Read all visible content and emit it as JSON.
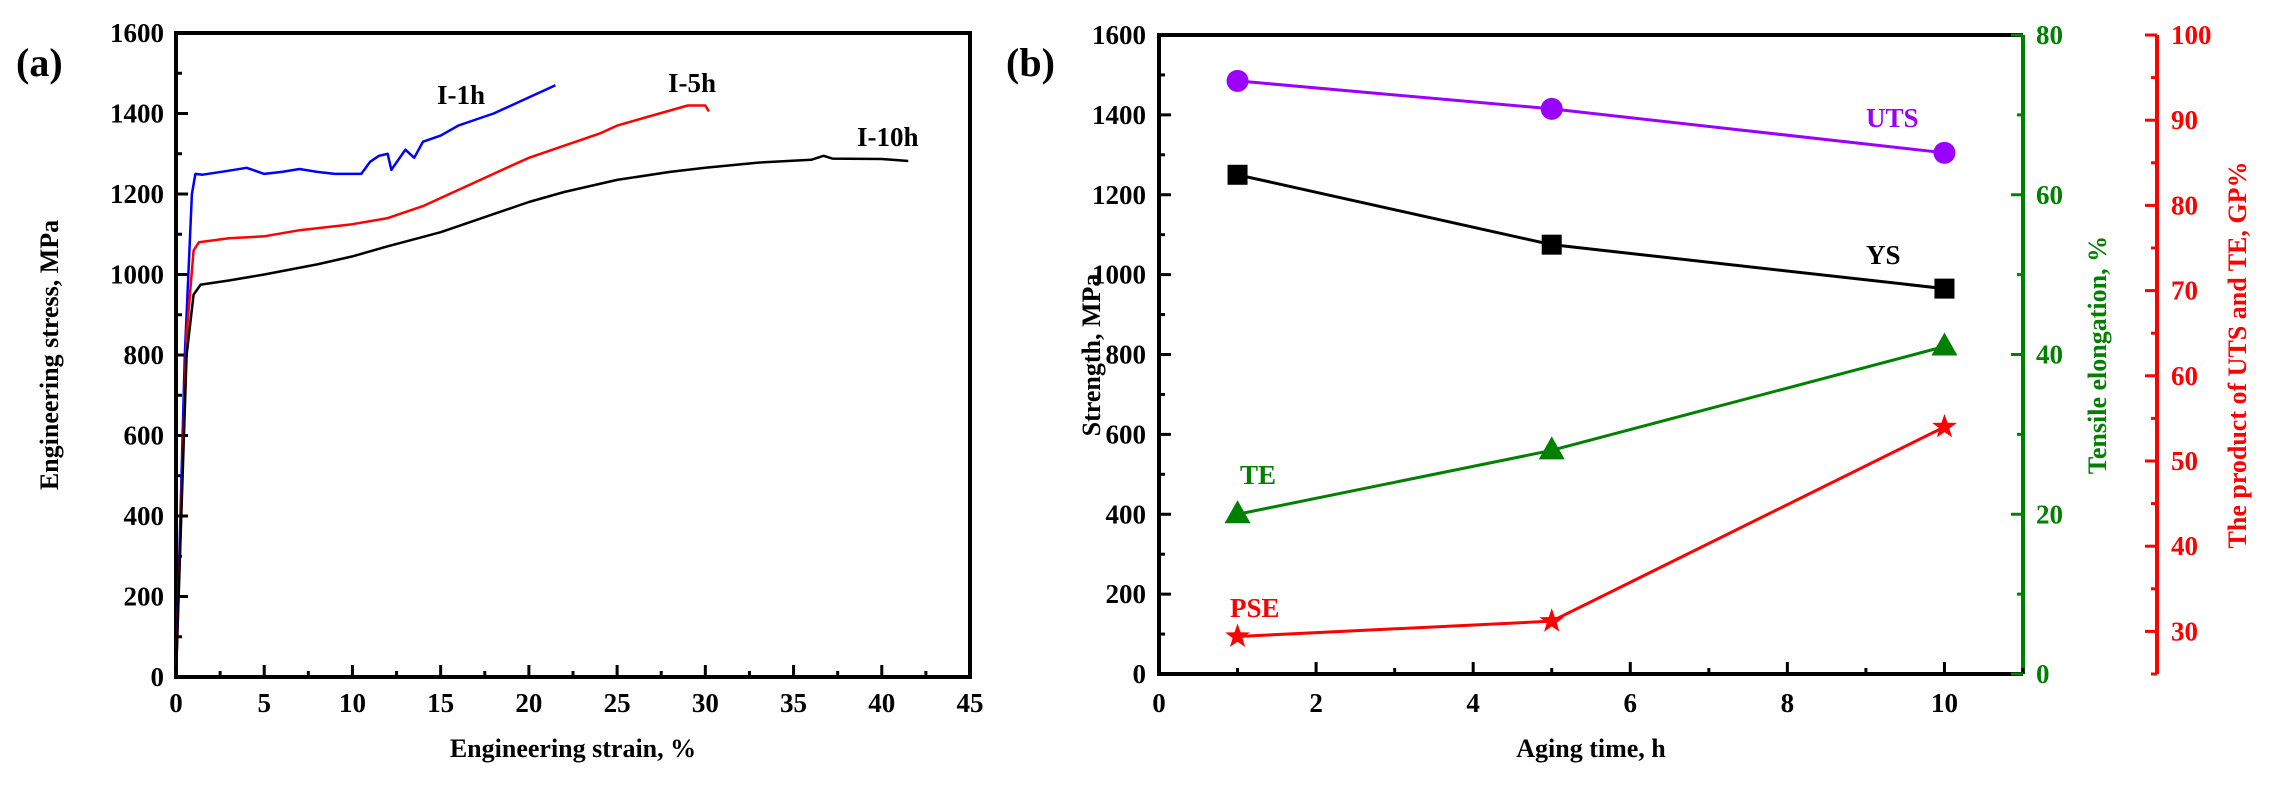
{
  "chart_data": [
    {
      "type": "line",
      "panel_label": "(a)",
      "xlabel": "Engineering strain, %",
      "ylabel": "Engineering stress, MPa",
      "xlim": [
        0,
        45
      ],
      "ylim": [
        0,
        1600
      ],
      "xticks": [
        0,
        5,
        10,
        15,
        20,
        25,
        30,
        35,
        40,
        45
      ],
      "yticks": [
        0,
        200,
        400,
        600,
        800,
        1000,
        1200,
        1400,
        1600
      ],
      "grid": false,
      "series": [
        {
          "name": "I-1h",
          "color": "#0000ff",
          "x": [
            0,
            0.5,
            0.9,
            1.1,
            1.5,
            3,
            4,
            5,
            6,
            7,
            8,
            9,
            10.5,
            11,
            11.5,
            12,
            12.2,
            13,
            13.5,
            14,
            15,
            16,
            17,
            18,
            19,
            20,
            21,
            21.5
          ],
          "y": [
            0,
            800,
            1200,
            1250,
            1248,
            1258,
            1265,
            1250,
            1255,
            1262,
            1255,
            1250,
            1250,
            1280,
            1295,
            1300,
            1260,
            1310,
            1290,
            1330,
            1345,
            1370,
            1385,
            1400,
            1420,
            1440,
            1460,
            1470
          ]
        },
        {
          "name": "I-5h",
          "color": "#ff0000",
          "x": [
            0,
            0.6,
            1.0,
            1.3,
            3,
            5,
            7,
            10,
            12,
            14,
            15,
            17,
            19,
            20,
            22,
            24,
            25,
            27,
            29,
            30,
            30.2
          ],
          "y": [
            0,
            850,
            1060,
            1080,
            1090,
            1095,
            1110,
            1125,
            1140,
            1170,
            1190,
            1230,
            1270,
            1290,
            1320,
            1350,
            1370,
            1395,
            1420,
            1420,
            1405
          ]
        },
        {
          "name": "I-10h",
          "color": "#000000",
          "x": [
            0,
            0.6,
            1.0,
            1.4,
            3,
            5,
            8,
            10,
            12,
            15,
            18,
            20,
            22,
            25,
            28,
            30,
            33,
            36,
            36.7,
            37.2,
            40,
            41.5
          ],
          "y": [
            0,
            800,
            950,
            975,
            985,
            1000,
            1025,
            1045,
            1070,
            1105,
            1150,
            1180,
            1205,
            1235,
            1255,
            1265,
            1278,
            1285,
            1295,
            1288,
            1287,
            1282
          ]
        }
      ],
      "annotations": [
        "I-1h",
        "I-5h",
        "I-10h"
      ]
    },
    {
      "type": "line",
      "panel_label": "(b)",
      "xlabel": "Aging time, h",
      "ylabel": "Strength, MPa",
      "ylabel_right1": "Tensile elongation, %",
      "ylabel_right2": "The product of UTS and TE, GP%",
      "xlim": [
        0,
        11
      ],
      "ylim": [
        0,
        1600
      ],
      "ylim_right1": [
        0,
        80
      ],
      "ylim_right2": [
        25,
        100
      ],
      "xticks": [
        0,
        2,
        4,
        6,
        8,
        10
      ],
      "yticks": [
        0,
        200,
        400,
        600,
        800,
        1000,
        1200,
        1400,
        1600
      ],
      "yticks_right1": [
        0,
        20,
        40,
        60,
        80
      ],
      "yticks_right2": [
        30,
        40,
        50,
        60,
        70,
        80,
        90,
        100
      ],
      "grid": false,
      "x": [
        1,
        5,
        10
      ],
      "series": [
        {
          "name": "UTS",
          "axis": "left",
          "color": "#9b00ff",
          "marker": "circle",
          "values": [
            1485,
            1415,
            1305
          ]
        },
        {
          "name": "YS",
          "axis": "left",
          "color": "#000000",
          "marker": "square",
          "values": [
            1250,
            1075,
            965
          ]
        },
        {
          "name": "TE",
          "axis": "right1",
          "color": "#008000",
          "marker": "triangle",
          "values": [
            20,
            28,
            41
          ]
        },
        {
          "name": "PSE",
          "axis": "right2",
          "color": "#ff0000",
          "marker": "star",
          "values": [
            29.4,
            31.2,
            54
          ]
        }
      ],
      "axis_colors": {
        "right1": "#008000",
        "right2": "#ff0000"
      }
    }
  ]
}
